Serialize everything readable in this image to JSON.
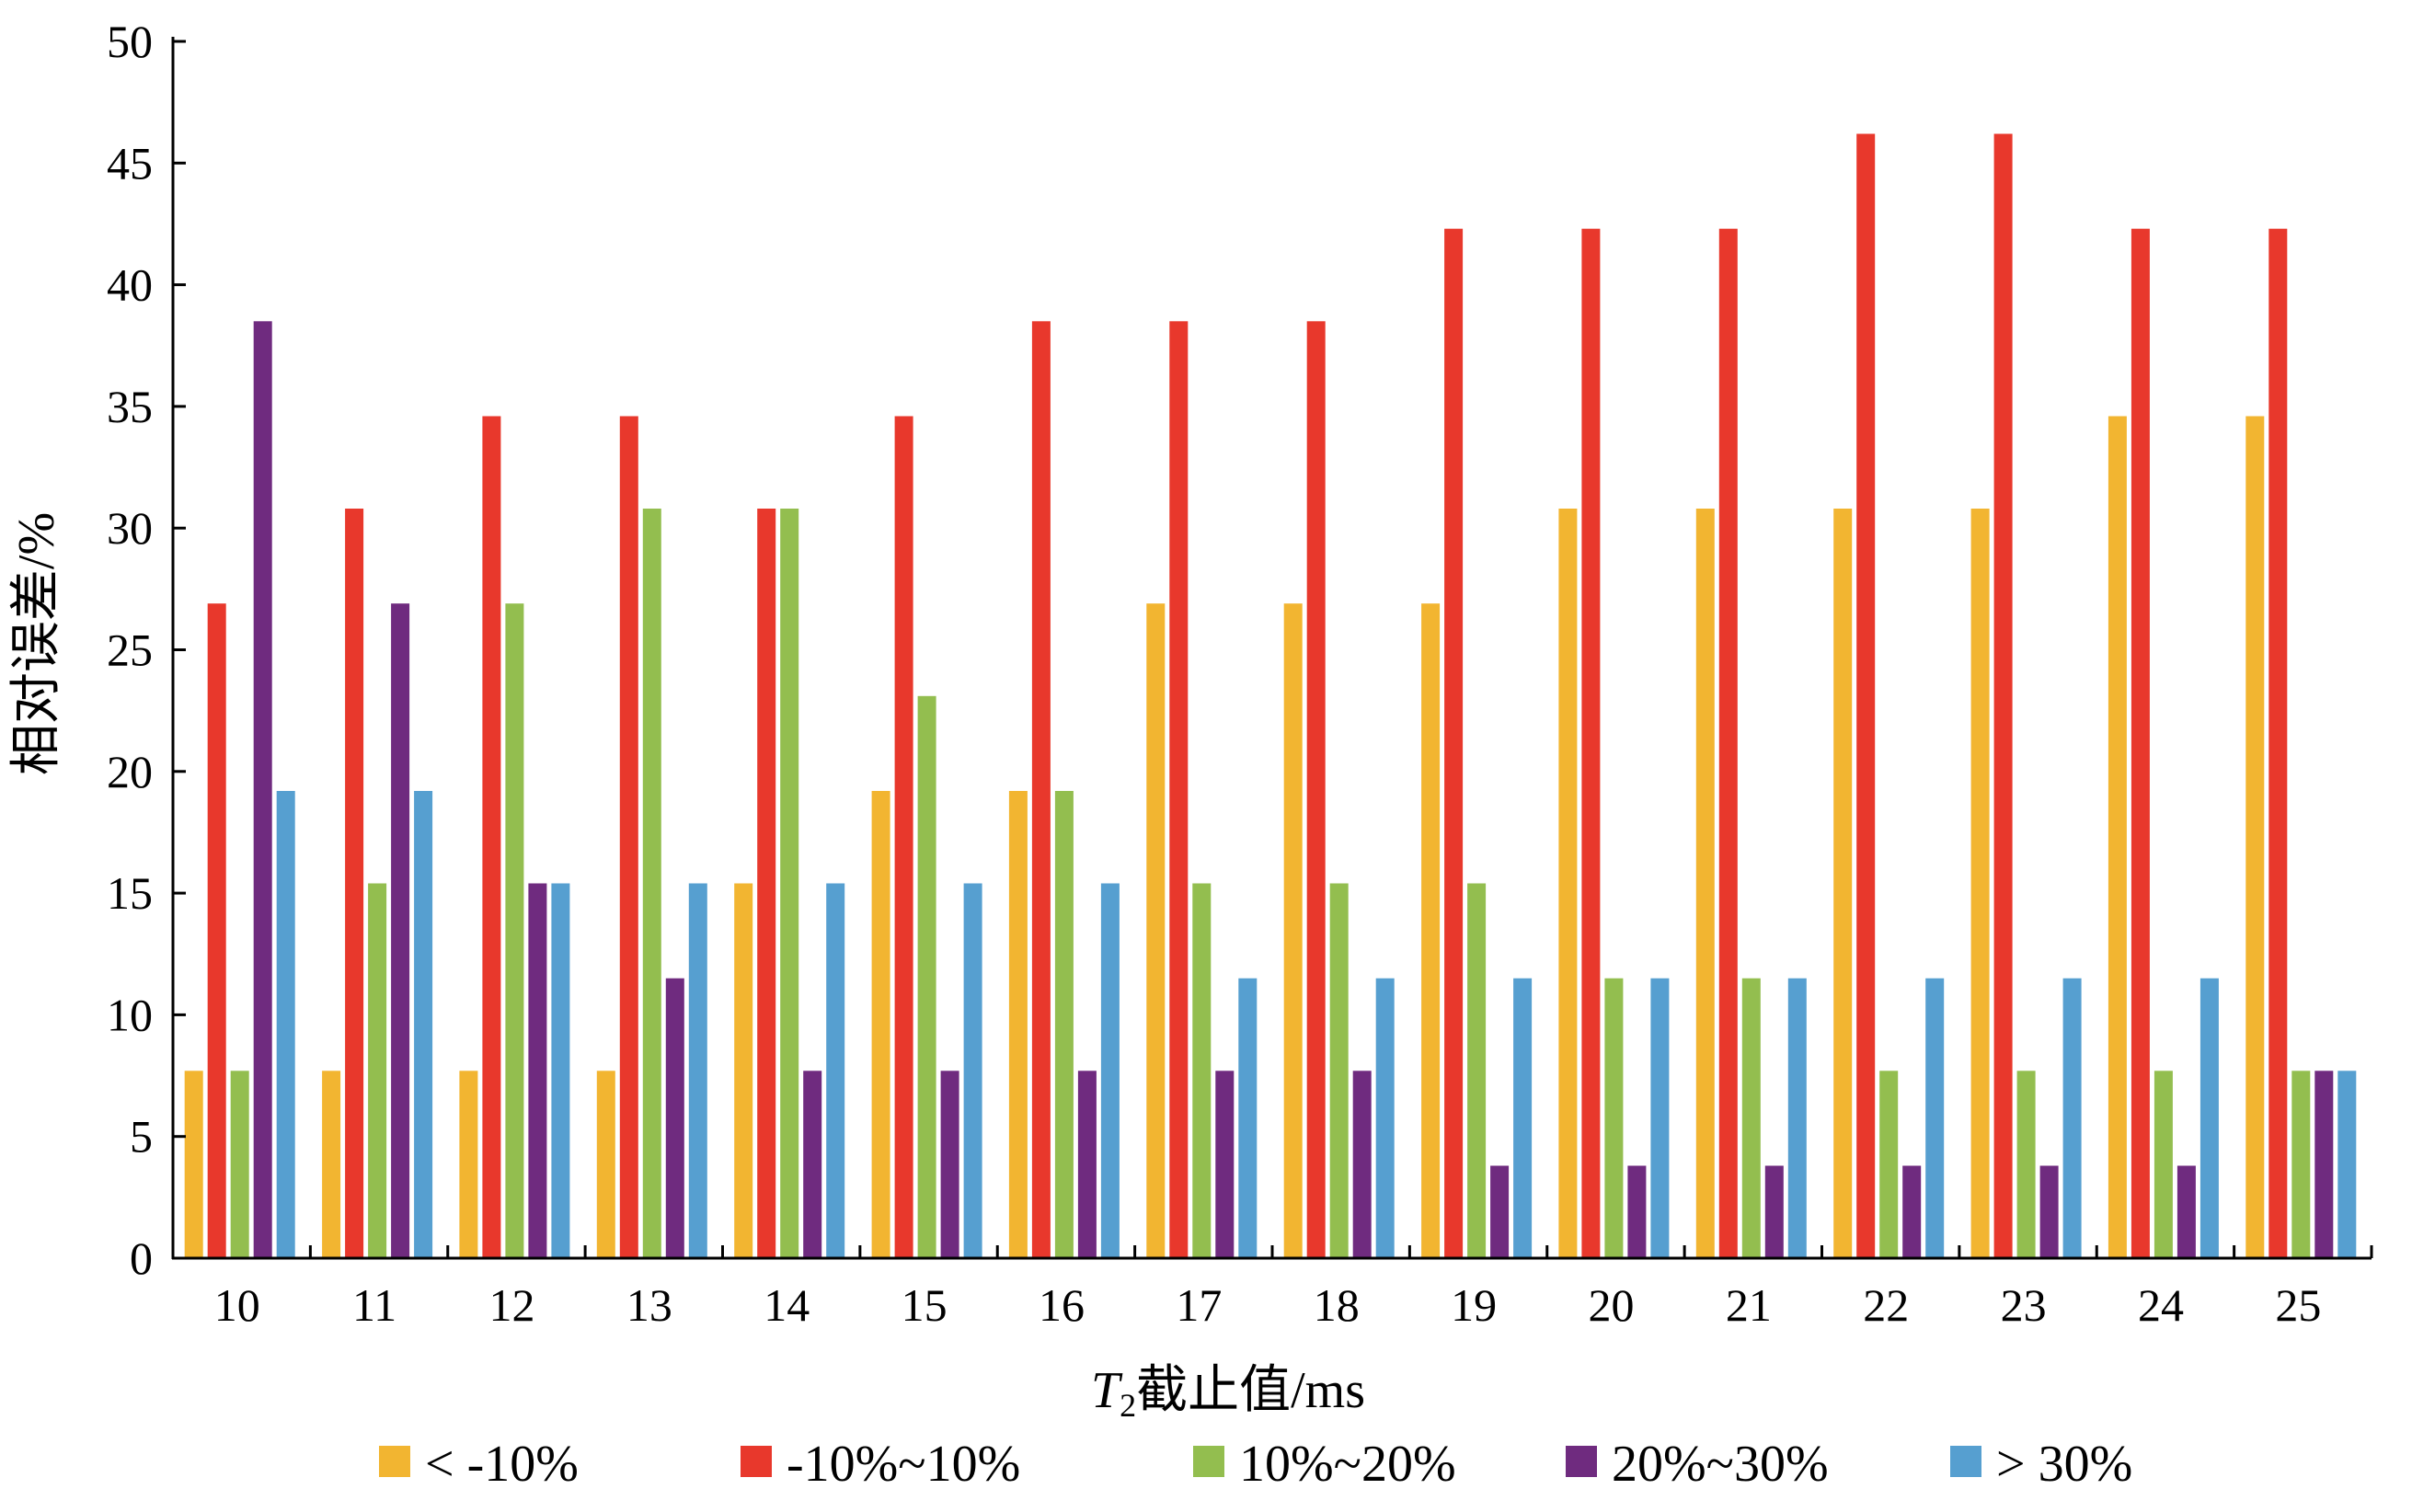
{
  "chart_data": {
    "type": "bar",
    "ylabel": "相对误差/%",
    "xlabel_parts": {
      "main": "T",
      "sub": "2",
      "rest": "截止值/ms"
    },
    "ylim": [
      0,
      50
    ],
    "yticks": [
      0,
      5,
      10,
      15,
      20,
      25,
      30,
      35,
      40,
      45,
      50
    ],
    "categories": [
      "10",
      "11",
      "12",
      "13",
      "14",
      "15",
      "16",
      "17",
      "18",
      "19",
      "20",
      "21",
      "22",
      "23",
      "24",
      "25"
    ],
    "legend_position": "bottom",
    "grid": false,
    "series": [
      {
        "name": "< -10%",
        "color": "#f2b531",
        "values": [
          7.7,
          7.7,
          7.7,
          7.7,
          15.4,
          19.2,
          19.2,
          26.9,
          26.9,
          26.9,
          30.8,
          30.8,
          30.8,
          30.8,
          34.6,
          34.6
        ]
      },
      {
        "name": "-10%~10%",
        "color": "#e8382c",
        "values": [
          26.9,
          30.8,
          34.6,
          34.6,
          30.8,
          34.6,
          38.5,
          38.5,
          38.5,
          42.3,
          42.3,
          42.3,
          46.2,
          46.2,
          42.3,
          42.3
        ]
      },
      {
        "name": "10%~20%",
        "color": "#93be4f",
        "values": [
          7.7,
          15.4,
          26.9,
          30.8,
          30.8,
          23.1,
          19.2,
          15.4,
          15.4,
          15.4,
          11.5,
          11.5,
          7.7,
          7.7,
          7.7,
          7.7
        ]
      },
      {
        "name": "20%~30%",
        "color": "#6f2b7f",
        "values": [
          38.5,
          26.9,
          15.4,
          11.5,
          7.7,
          7.7,
          7.7,
          7.7,
          7.7,
          3.8,
          3.8,
          3.8,
          3.8,
          3.8,
          3.8,
          7.7
        ]
      },
      {
        "name": "> 30%",
        "color": "#569fd0",
        "values": [
          19.2,
          19.2,
          15.4,
          15.4,
          15.4,
          15.4,
          15.4,
          11.5,
          11.5,
          11.5,
          11.5,
          11.5,
          11.5,
          11.5,
          11.5,
          7.7
        ]
      }
    ]
  }
}
